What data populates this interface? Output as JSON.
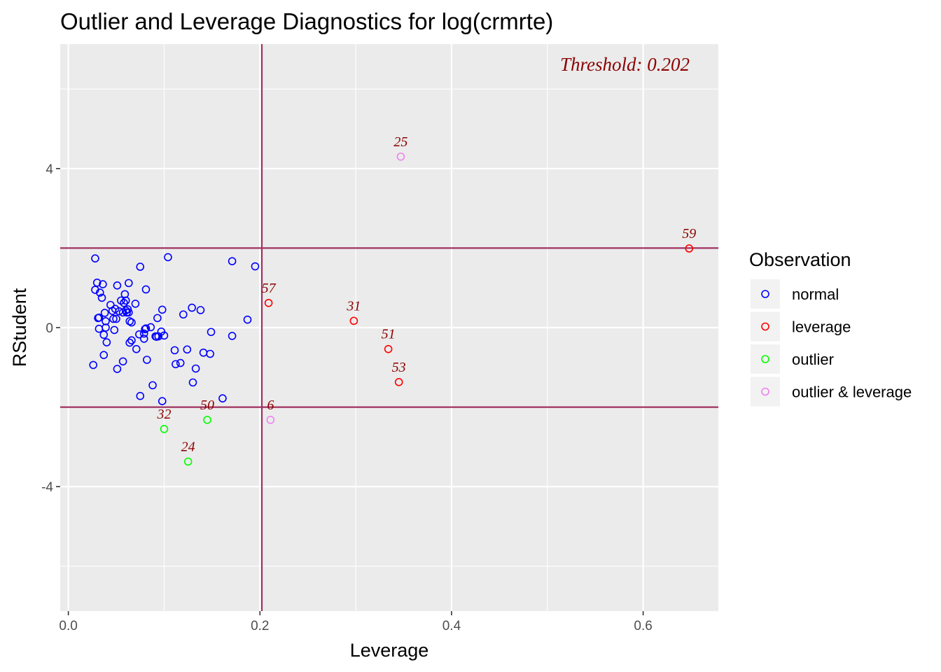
{
  "chart_data": {
    "type": "scatter",
    "title": "Outlier and Leverage Diagnostics for log(crmrte)",
    "xlabel": "Leverage",
    "ylabel": "RStudent",
    "xlim": [
      -0.0085,
      0.6785
    ],
    "ylim": [
      -7.13,
      7.13
    ],
    "x_ticks": [
      0.0,
      0.2,
      0.4,
      0.6
    ],
    "x_tick_labels": [
      "0.0",
      "0.2",
      "0.4",
      "0.6"
    ],
    "y_ticks": [
      -4,
      0,
      4
    ],
    "y_tick_labels": [
      "-4",
      "0",
      "4"
    ],
    "grid": true,
    "reference_lines": {
      "leverage": 0.202,
      "rstudent": [
        -2,
        2
      ]
    },
    "annotation": "Threshold: 0.202",
    "legend": {
      "title": "Observation",
      "position": "right",
      "entries": [
        {
          "key": "normal",
          "label": "normal",
          "color": "#0000ff"
        },
        {
          "key": "leverage",
          "label": "leverage",
          "color": "#ff0000"
        },
        {
          "key": "outlier",
          "label": "outlier",
          "color": "#00ff00"
        },
        {
          "key": "outlier_leverage",
          "label": "outlier & leverage",
          "color": "#ee82ee"
        }
      ]
    },
    "points": [
      {
        "x": 0.026,
        "y": -0.94,
        "group": "normal"
      },
      {
        "x": 0.028,
        "y": 0.95,
        "group": "normal"
      },
      {
        "x": 0.028,
        "y": 1.74,
        "group": "normal"
      },
      {
        "x": 0.03,
        "y": 1.13,
        "group": "normal"
      },
      {
        "x": 0.031,
        "y": 0.24,
        "group": "normal"
      },
      {
        "x": 0.032,
        "y": 0.25,
        "group": "normal"
      },
      {
        "x": 0.032,
        "y": -0.03,
        "group": "normal"
      },
      {
        "x": 0.033,
        "y": 0.88,
        "group": "normal"
      },
      {
        "x": 0.035,
        "y": 0.75,
        "group": "normal"
      },
      {
        "x": 0.036,
        "y": 1.09,
        "group": "normal"
      },
      {
        "x": 0.037,
        "y": -0.18,
        "group": "normal"
      },
      {
        "x": 0.037,
        "y": -0.69,
        "group": "normal"
      },
      {
        "x": 0.038,
        "y": 0.37,
        "group": "normal"
      },
      {
        "x": 0.039,
        "y": 0.16,
        "group": "normal"
      },
      {
        "x": 0.039,
        "y": 0.0,
        "group": "normal"
      },
      {
        "x": 0.04,
        "y": -0.37,
        "group": "normal"
      },
      {
        "x": 0.044,
        "y": 0.57,
        "group": "normal"
      },
      {
        "x": 0.046,
        "y": 0.42,
        "group": "normal"
      },
      {
        "x": 0.047,
        "y": 0.22,
        "group": "normal"
      },
      {
        "x": 0.048,
        "y": -0.06,
        "group": "normal"
      },
      {
        "x": 0.049,
        "y": 0.47,
        "group": "normal"
      },
      {
        "x": 0.05,
        "y": 0.22,
        "group": "normal"
      },
      {
        "x": 0.051,
        "y": 1.06,
        "group": "normal"
      },
      {
        "x": 0.051,
        "y": -1.04,
        "group": "normal"
      },
      {
        "x": 0.053,
        "y": 0.41,
        "group": "normal"
      },
      {
        "x": 0.055,
        "y": 0.68,
        "group": "normal"
      },
      {
        "x": 0.057,
        "y": 0.38,
        "group": "normal"
      },
      {
        "x": 0.057,
        "y": -0.85,
        "group": "normal"
      },
      {
        "x": 0.058,
        "y": 0.62,
        "group": "normal"
      },
      {
        "x": 0.059,
        "y": 0.84,
        "group": "normal"
      },
      {
        "x": 0.06,
        "y": 0.43,
        "group": "normal"
      },
      {
        "x": 0.06,
        "y": 0.68,
        "group": "normal"
      },
      {
        "x": 0.061,
        "y": 0.38,
        "group": "normal"
      },
      {
        "x": 0.062,
        "y": 0.46,
        "group": "normal"
      },
      {
        "x": 0.063,
        "y": 0.38,
        "group": "normal"
      },
      {
        "x": 0.063,
        "y": 1.12,
        "group": "normal"
      },
      {
        "x": 0.064,
        "y": 0.16,
        "group": "normal"
      },
      {
        "x": 0.064,
        "y": -0.38,
        "group": "normal"
      },
      {
        "x": 0.066,
        "y": 0.13,
        "group": "normal"
      },
      {
        "x": 0.066,
        "y": -0.32,
        "group": "normal"
      },
      {
        "x": 0.07,
        "y": 0.6,
        "group": "normal"
      },
      {
        "x": 0.071,
        "y": -0.54,
        "group": "normal"
      },
      {
        "x": 0.074,
        "y": -0.17,
        "group": "normal"
      },
      {
        "x": 0.075,
        "y": 1.53,
        "group": "normal"
      },
      {
        "x": 0.075,
        "y": -1.72,
        "group": "normal"
      },
      {
        "x": 0.079,
        "y": -0.28,
        "group": "normal"
      },
      {
        "x": 0.079,
        "y": -0.15,
        "group": "normal"
      },
      {
        "x": 0.08,
        "y": -0.04,
        "group": "normal"
      },
      {
        "x": 0.081,
        "y": -0.02,
        "group": "normal"
      },
      {
        "x": 0.081,
        "y": 0.96,
        "group": "normal"
      },
      {
        "x": 0.082,
        "y": -0.81,
        "group": "normal"
      },
      {
        "x": 0.086,
        "y": 0.01,
        "group": "normal"
      },
      {
        "x": 0.088,
        "y": -1.45,
        "group": "normal"
      },
      {
        "x": 0.091,
        "y": -0.22,
        "group": "normal"
      },
      {
        "x": 0.092,
        "y": -0.23,
        "group": "normal"
      },
      {
        "x": 0.093,
        "y": 0.24,
        "group": "normal"
      },
      {
        "x": 0.094,
        "y": -0.22,
        "group": "normal"
      },
      {
        "x": 0.097,
        "y": -0.1,
        "group": "normal"
      },
      {
        "x": 0.098,
        "y": 0.45,
        "group": "normal"
      },
      {
        "x": 0.098,
        "y": -1.85,
        "group": "normal"
      },
      {
        "x": 0.1,
        "y": -0.2,
        "group": "normal"
      },
      {
        "x": 0.104,
        "y": 1.77,
        "group": "normal"
      },
      {
        "x": 0.111,
        "y": -0.57,
        "group": "normal"
      },
      {
        "x": 0.112,
        "y": -0.92,
        "group": "normal"
      },
      {
        "x": 0.117,
        "y": -0.89,
        "group": "normal"
      },
      {
        "x": 0.12,
        "y": 0.33,
        "group": "normal"
      },
      {
        "x": 0.124,
        "y": -0.55,
        "group": "normal"
      },
      {
        "x": 0.129,
        "y": 0.5,
        "group": "normal"
      },
      {
        "x": 0.13,
        "y": -1.38,
        "group": "normal"
      },
      {
        "x": 0.133,
        "y": -1.03,
        "group": "normal"
      },
      {
        "x": 0.138,
        "y": 0.44,
        "group": "normal"
      },
      {
        "x": 0.141,
        "y": -0.63,
        "group": "normal"
      },
      {
        "x": 0.148,
        "y": -0.66,
        "group": "normal"
      },
      {
        "x": 0.149,
        "y": -0.11,
        "group": "normal"
      },
      {
        "x": 0.161,
        "y": -1.78,
        "group": "normal"
      },
      {
        "x": 0.171,
        "y": 1.67,
        "group": "normal"
      },
      {
        "x": 0.171,
        "y": -0.21,
        "group": "normal"
      },
      {
        "x": 0.187,
        "y": 0.2,
        "group": "normal"
      },
      {
        "x": 0.195,
        "y": 1.54,
        "group": "normal"
      },
      {
        "x": 0.209,
        "y": 0.62,
        "group": "leverage",
        "label": "57"
      },
      {
        "x": 0.298,
        "y": 0.17,
        "group": "leverage",
        "label": "31"
      },
      {
        "x": 0.334,
        "y": -0.54,
        "group": "leverage",
        "label": "51"
      },
      {
        "x": 0.345,
        "y": -1.37,
        "group": "leverage",
        "label": "53"
      },
      {
        "x": 0.648,
        "y": 1.99,
        "group": "leverage",
        "label": "59"
      },
      {
        "x": 0.1,
        "y": -2.55,
        "group": "outlier",
        "label": "32"
      },
      {
        "x": 0.145,
        "y": -2.32,
        "group": "outlier",
        "label": "50"
      },
      {
        "x": 0.125,
        "y": -3.37,
        "group": "outlier",
        "label": "24"
      },
      {
        "x": 0.211,
        "y": -2.32,
        "group": "outlier_leverage",
        "label": "6"
      },
      {
        "x": 0.347,
        "y": 4.3,
        "group": "outlier_leverage",
        "label": "25"
      }
    ]
  },
  "colors": {
    "panel_bg": "#ebebeb",
    "grid": "#ffffff",
    "reference_line": "#a0325f",
    "label_text": "#8b0000"
  }
}
